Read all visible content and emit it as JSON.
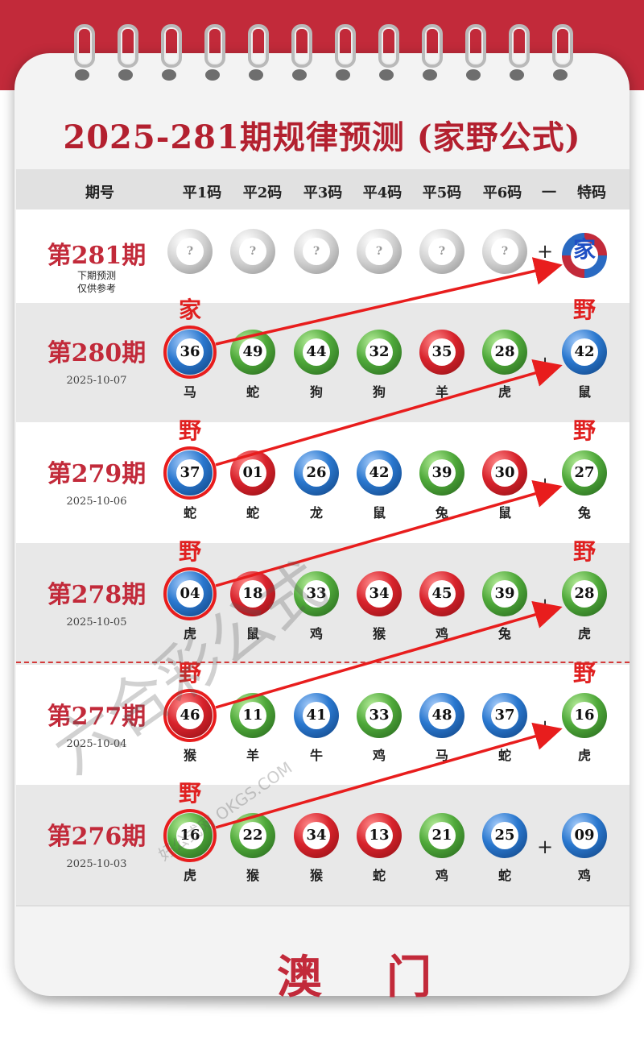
{
  "title": "2025-281期规律预测 (家野公式)",
  "colors": {
    "accent": "#c22a3a",
    "arrow": "#e81d1d",
    "jia_tag": "#1e4fc4"
  },
  "headers": [
    "期号",
    "平1码",
    "平2码",
    "平3码",
    "平4码",
    "平5码",
    "平6码",
    "一",
    "特码"
  ],
  "predict_row": {
    "period": "第281期",
    "note_line1": "下期预测",
    "note_line2": "仅供参考",
    "placeholder": "?",
    "special_tag": "家"
  },
  "rows": [
    {
      "period": "第280期",
      "date": "2025-10-07",
      "tag": "家",
      "special_tag": "野",
      "balls": [
        {
          "n": "36",
          "c": "blue",
          "z": "马"
        },
        {
          "n": "49",
          "c": "green",
          "z": "蛇"
        },
        {
          "n": "44",
          "c": "green",
          "z": "狗"
        },
        {
          "n": "32",
          "c": "green",
          "z": "狗"
        },
        {
          "n": "35",
          "c": "red",
          "z": "羊"
        },
        {
          "n": "28",
          "c": "green",
          "z": "虎"
        }
      ],
      "special": {
        "n": "42",
        "c": "blue",
        "z": "鼠"
      }
    },
    {
      "period": "第279期",
      "date": "2025-10-06",
      "tag": "野",
      "special_tag": "野",
      "balls": [
        {
          "n": "37",
          "c": "blue",
          "z": "蛇"
        },
        {
          "n": "01",
          "c": "red",
          "z": "蛇"
        },
        {
          "n": "26",
          "c": "blue",
          "z": "龙"
        },
        {
          "n": "42",
          "c": "blue",
          "z": "鼠"
        },
        {
          "n": "39",
          "c": "green",
          "z": "兔"
        },
        {
          "n": "30",
          "c": "red",
          "z": "鼠"
        }
      ],
      "special": {
        "n": "27",
        "c": "green",
        "z": "兔"
      }
    },
    {
      "period": "第278期",
      "date": "2025-10-05",
      "tag": "野",
      "special_tag": "野",
      "balls": [
        {
          "n": "04",
          "c": "blue",
          "z": "虎"
        },
        {
          "n": "18",
          "c": "red",
          "z": "鼠"
        },
        {
          "n": "33",
          "c": "green",
          "z": "鸡"
        },
        {
          "n": "34",
          "c": "red",
          "z": "猴"
        },
        {
          "n": "45",
          "c": "red",
          "z": "鸡"
        },
        {
          "n": "39",
          "c": "green",
          "z": "兔"
        }
      ],
      "special": {
        "n": "28",
        "c": "green",
        "z": "虎"
      }
    },
    {
      "period": "第277期",
      "date": "2025-10-04",
      "tag": "野",
      "special_tag": "野",
      "balls": [
        {
          "n": "46",
          "c": "red",
          "z": "猴"
        },
        {
          "n": "11",
          "c": "green",
          "z": "羊"
        },
        {
          "n": "41",
          "c": "blue",
          "z": "牛"
        },
        {
          "n": "33",
          "c": "green",
          "z": "鸡"
        },
        {
          "n": "48",
          "c": "blue",
          "z": "马"
        },
        {
          "n": "37",
          "c": "blue",
          "z": "蛇"
        }
      ],
      "special": {
        "n": "16",
        "c": "green",
        "z": "虎"
      }
    },
    {
      "period": "第276期",
      "date": "2025-10-03",
      "tag": "野",
      "special_tag": "",
      "balls": [
        {
          "n": "16",
          "c": "green",
          "z": "虎"
        },
        {
          "n": "22",
          "c": "green",
          "z": "猴"
        },
        {
          "n": "34",
          "c": "red",
          "z": "猴"
        },
        {
          "n": "13",
          "c": "red",
          "z": "蛇"
        },
        {
          "n": "21",
          "c": "green",
          "z": "鸡"
        },
        {
          "n": "25",
          "c": "blue",
          "z": "蛇"
        }
      ],
      "special": {
        "n": "09",
        "c": "blue",
        "z": "鸡"
      }
    }
  ],
  "plus": "+",
  "footer": "澳门",
  "watermark": "六合彩公式",
  "watermark_url": "好公式网 OKGS.COM"
}
